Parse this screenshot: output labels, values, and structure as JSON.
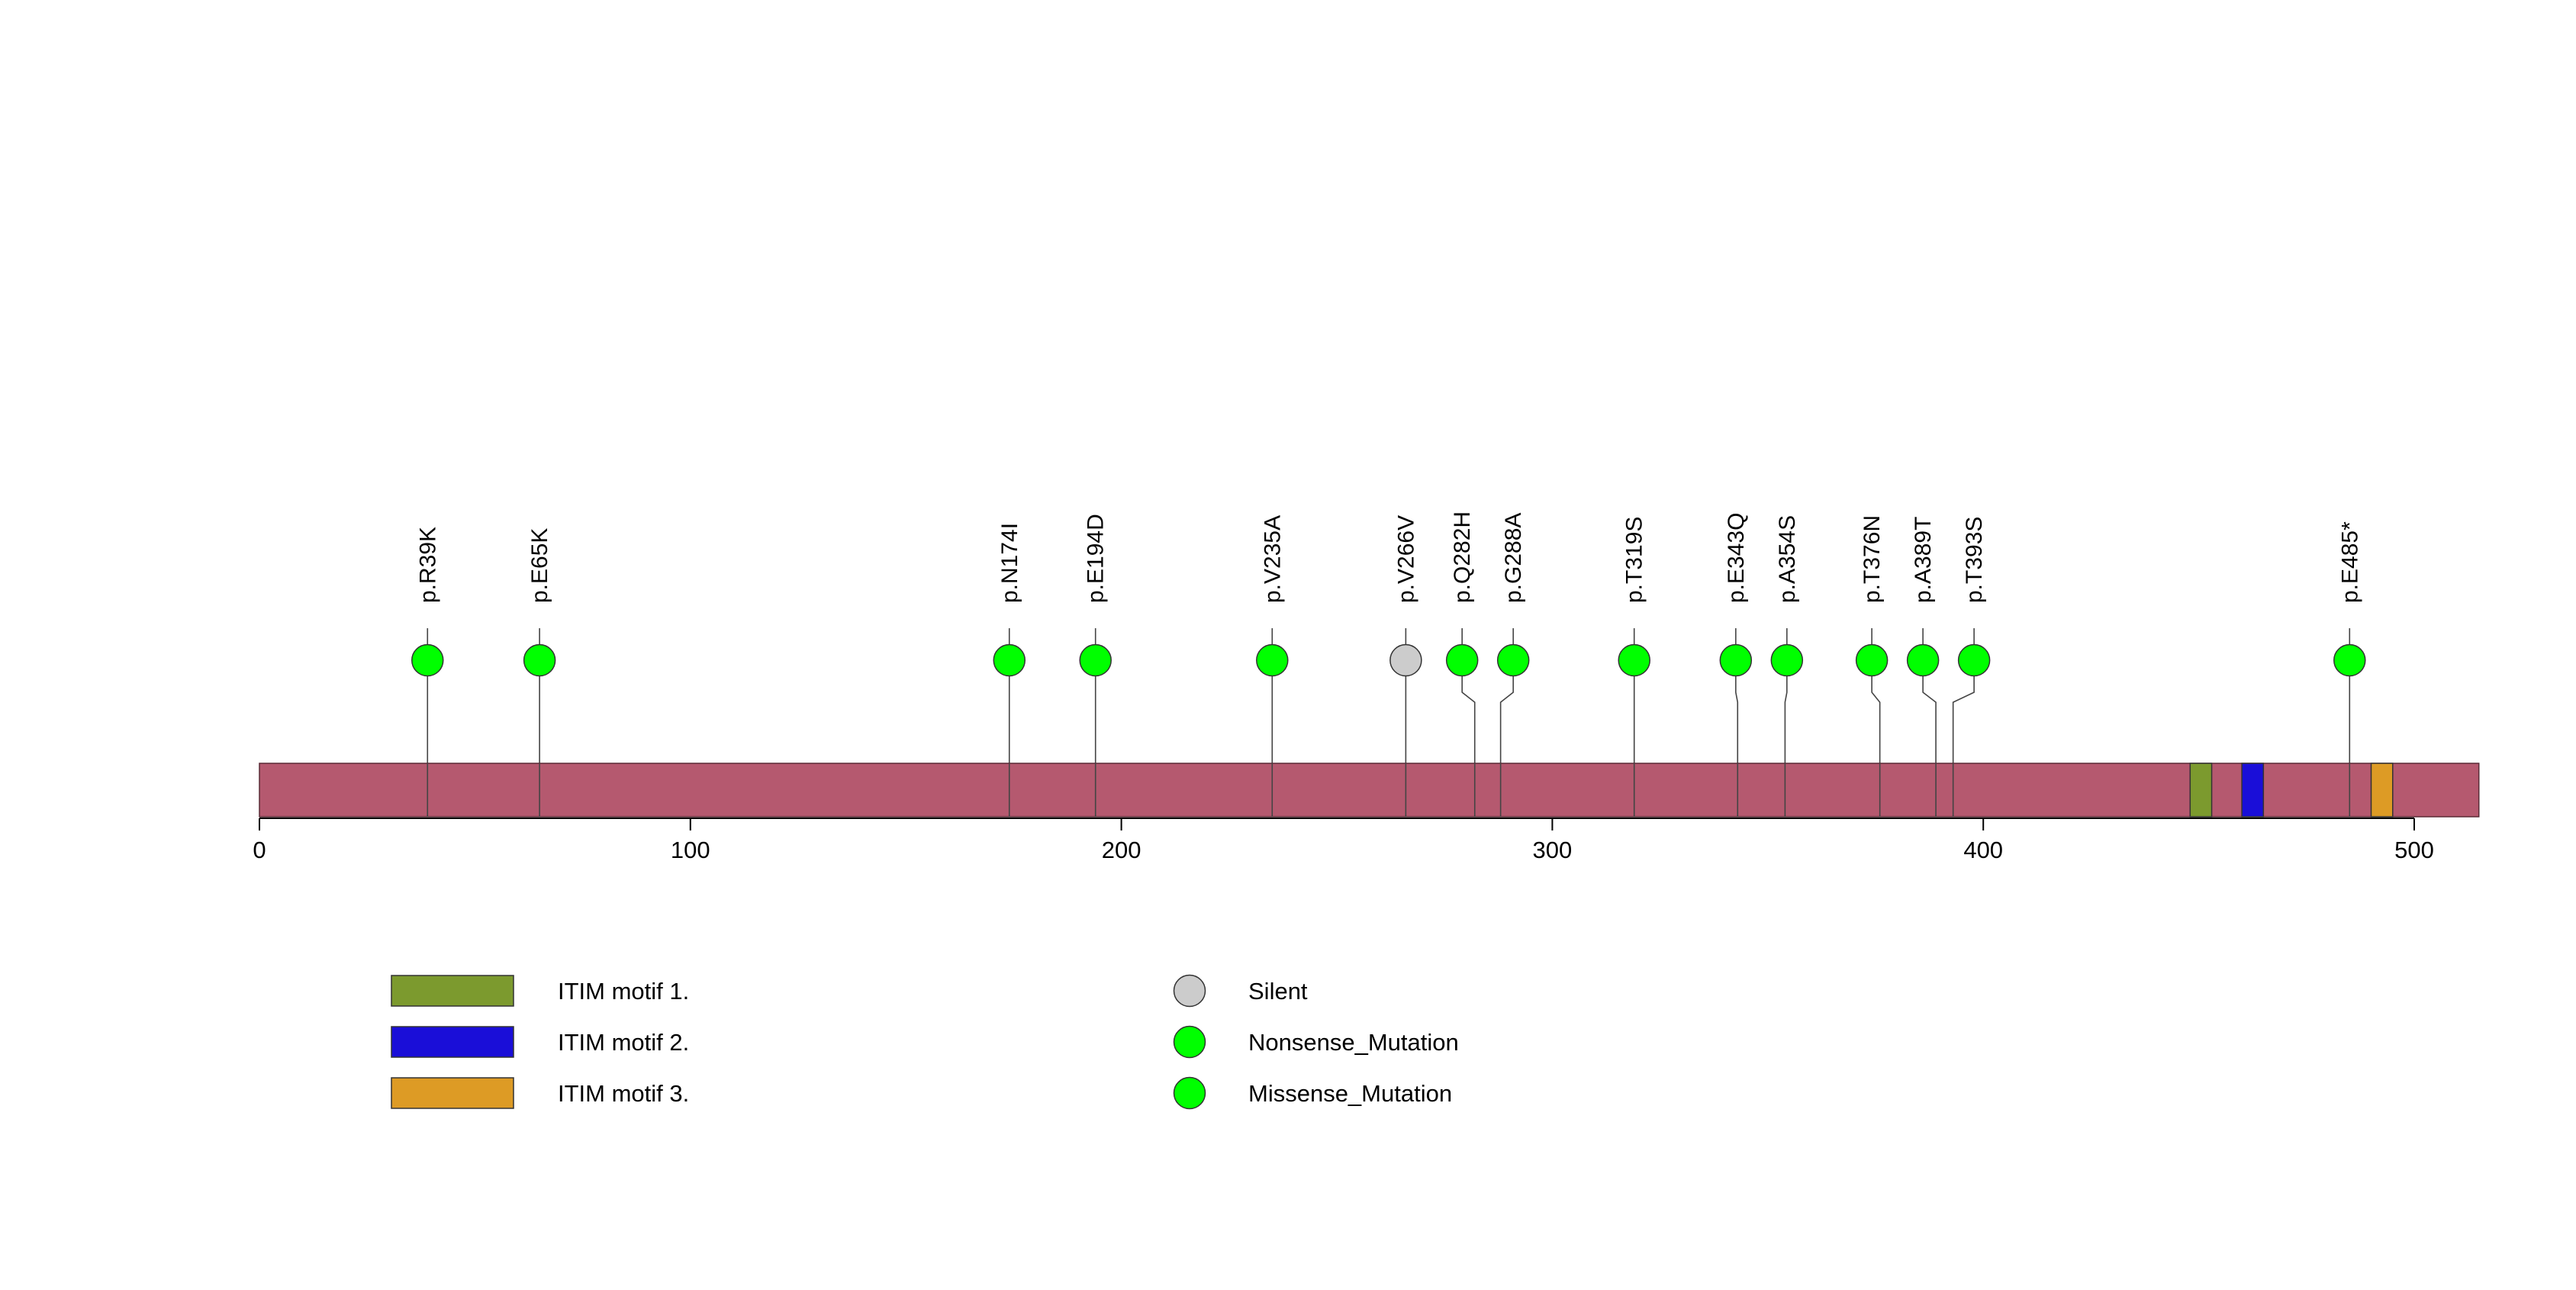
{
  "chart_data": {
    "type": "lollipop",
    "title": "",
    "protein_length": 515,
    "x_axis": {
      "range": [
        0,
        515
      ],
      "ticks": [
        0,
        100,
        200,
        300,
        400,
        500
      ],
      "tick_labels": [
        "0",
        "100",
        "200",
        "300",
        "400",
        "500"
      ]
    },
    "colors": {
      "protein_bar": "#b5596f",
      "protein_border": "#5a2a36",
      "stem": "#444444",
      "axis": "#000000"
    },
    "domains": [
      {
        "name": "ITIM motif 1.",
        "start": 448,
        "end": 453,
        "color": "#7c9a2e"
      },
      {
        "name": "ITIM motif 2.",
        "start": 460,
        "end": 465,
        "color": "#1a0ed8"
      },
      {
        "name": "ITIM motif 3.",
        "start": 490,
        "end": 495,
        "color": "#dd9b25"
      }
    ],
    "mutations": [
      {
        "label": "p.R39K",
        "position": 39,
        "type": "Missense_Mutation"
      },
      {
        "label": "p.E65K",
        "position": 65,
        "type": "Missense_Mutation"
      },
      {
        "label": "p.N174I",
        "position": 174,
        "type": "Missense_Mutation"
      },
      {
        "label": "p.E194D",
        "position": 194,
        "type": "Missense_Mutation"
      },
      {
        "label": "p.V235A",
        "position": 235,
        "type": "Missense_Mutation"
      },
      {
        "label": "p.V266V",
        "position": 266,
        "type": "Silent"
      },
      {
        "label": "p.Q282H",
        "position": 282,
        "type": "Missense_Mutation"
      },
      {
        "label": "p.G288A",
        "position": 288,
        "type": "Missense_Mutation"
      },
      {
        "label": "p.T319S",
        "position": 319,
        "type": "Missense_Mutation"
      },
      {
        "label": "p.E343Q",
        "position": 343,
        "type": "Missense_Mutation"
      },
      {
        "label": "p.A354S",
        "position": 354,
        "type": "Missense_Mutation"
      },
      {
        "label": "p.T376N",
        "position": 376,
        "type": "Missense_Mutation"
      },
      {
        "label": "p.A389T",
        "position": 389,
        "type": "Missense_Mutation"
      },
      {
        "label": "p.T393S",
        "position": 393,
        "type": "Missense_Mutation"
      },
      {
        "label": "p.E485*",
        "position": 485,
        "type": "Nonsense_Mutation"
      }
    ],
    "mutation_legend": [
      {
        "name": "Silent",
        "color": "#cccccc"
      },
      {
        "name": "Nonsense_Mutation",
        "color": "#00ff00"
      },
      {
        "name": "Missense_Mutation",
        "color": "#00ff00"
      }
    ]
  }
}
